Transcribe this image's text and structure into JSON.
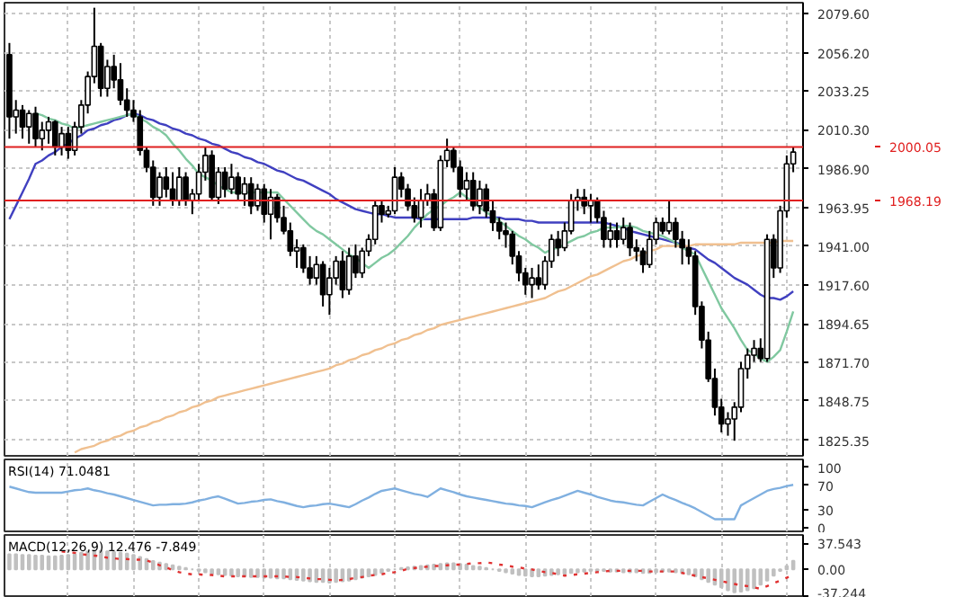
{
  "chart_data": [
    {
      "type": "candlestick",
      "categories": [
        null,
        null,
        null,
        null,
        null,
        null,
        null,
        null,
        null,
        null,
        null,
        null,
        null,
        null,
        null,
        null,
        null,
        null,
        null,
        null,
        null,
        null,
        null,
        null,
        null,
        null,
        null,
        null,
        null,
        null,
        null,
        null,
        null,
        null,
        null,
        null,
        null,
        null,
        null,
        null,
        null,
        null,
        null,
        null,
        null,
        null,
        null,
        null,
        null,
        null,
        null,
        null,
        null,
        null,
        null,
        null,
        null,
        null,
        null,
        null,
        null,
        null,
        null,
        null,
        null,
        null,
        null,
        null,
        null,
        null,
        null,
        null,
        null,
        null,
        null,
        null,
        null,
        null,
        null,
        null,
        null,
        null,
        null,
        null,
        null,
        null,
        null,
        null,
        null,
        null,
        null,
        null,
        null,
        null,
        null,
        null,
        null,
        null,
        null,
        null,
        null,
        null,
        null,
        null,
        null,
        null,
        null,
        null,
        null,
        null,
        null,
        null,
        null,
        null,
        null,
        null,
        null,
        null,
        null,
        null,
        null
      ],
      "ohlc": [
        [
          2055,
          2062,
          2005,
          2018
        ],
        [
          2018,
          2028,
          2008,
          2022
        ],
        [
          2022,
          2025,
          2005,
          2012
        ],
        [
          2012,
          2022,
          2002,
          2020
        ],
        [
          2020,
          2024,
          2000,
          2005
        ],
        [
          2005,
          2015,
          1998,
          2010
        ],
        [
          2010,
          2018,
          2002,
          2015
        ],
        [
          2015,
          2016,
          1995,
          2000
        ],
        [
          2000,
          2012,
          1995,
          2008
        ],
        [
          2008,
          2012,
          1993,
          1998
        ],
        [
          1998,
          2015,
          1995,
          2012
        ],
        [
          2012,
          2028,
          2008,
          2025
        ],
        [
          2025,
          2045,
          2020,
          2042
        ],
        [
          2042,
          2083,
          2038,
          2060
        ],
        [
          2060,
          2062,
          2030,
          2035
        ],
        [
          2035,
          2052,
          2030,
          2048
        ],
        [
          2048,
          2055,
          2035,
          2040
        ],
        [
          2040,
          2050,
          2025,
          2028
        ],
        [
          2028,
          2035,
          2018,
          2022
        ],
        [
          2022,
          2028,
          2015,
          2018
        ],
        [
          2018,
          2022,
          1995,
          1998
        ],
        [
          1998,
          2000,
          1985,
          1988
        ],
        [
          1988,
          1992,
          1965,
          1970
        ],
        [
          1970,
          1985,
          1965,
          1982
        ],
        [
          1982,
          1988,
          1970,
          1975
        ],
        [
          1975,
          1985,
          1965,
          1968
        ],
        [
          1968,
          1988,
          1965,
          1982
        ],
        [
          1982,
          1985,
          1965,
          1968
        ],
        [
          1968,
          1975,
          1960,
          1972
        ],
        [
          1972,
          1990,
          1968,
          1985
        ],
        [
          1985,
          2000,
          1980,
          1995
        ],
        [
          1995,
          1998,
          1968,
          1970
        ],
        [
          1970,
          1988,
          1966,
          1985
        ],
        [
          1985,
          1988,
          1970,
          1975
        ],
        [
          1975,
          1990,
          1972,
          1982
        ],
        [
          1982,
          1985,
          1968,
          1972
        ],
        [
          1972,
          1982,
          1965,
          1978
        ],
        [
          1978,
          1982,
          1960,
          1965
        ],
        [
          1965,
          1978,
          1962,
          1975
        ],
        [
          1975,
          1978,
          1955,
          1960
        ],
        [
          1960,
          1975,
          1945,
          1970
        ],
        [
          1970,
          1972,
          1955,
          1958
        ],
        [
          1958,
          1965,
          1948,
          1950
        ],
        [
          1950,
          1955,
          1935,
          1938
        ],
        [
          1938,
          1945,
          1928,
          1940
        ],
        [
          1940,
          1942,
          1925,
          1928
        ],
        [
          1928,
          1935,
          1918,
          1922
        ],
        [
          1922,
          1935,
          1918,
          1930
        ],
        [
          1930,
          1932,
          1905,
          1912
        ],
        [
          1912,
          1928,
          1900,
          1922
        ],
        [
          1922,
          1935,
          1918,
          1932
        ],
        [
          1932,
          1938,
          1910,
          1915
        ],
        [
          1915,
          1940,
          1912,
          1935
        ],
        [
          1935,
          1942,
          1922,
          1925
        ],
        [
          1925,
          1940,
          1922,
          1938
        ],
        [
          1938,
          1948,
          1935,
          1945
        ],
        [
          1945,
          1968,
          1942,
          1965
        ],
        [
          1965,
          1968,
          1955,
          1960
        ],
        [
          1960,
          1965,
          1958,
          1962
        ],
        [
          1962,
          1988,
          1960,
          1982
        ],
        [
          1982,
          1985,
          1970,
          1975
        ],
        [
          1975,
          1978,
          1962,
          1965
        ],
        [
          1965,
          1970,
          1955,
          1958
        ],
        [
          1958,
          1975,
          1952,
          1968
        ],
        [
          1968,
          1978,
          1965,
          1972
        ],
        [
          1972,
          1975,
          1950,
          1952
        ],
        [
          1952,
          1995,
          1950,
          1992
        ],
        [
          1992,
          2005,
          1988,
          1998
        ],
        [
          1998,
          2000,
          1985,
          1988
        ],
        [
          1988,
          1992,
          1970,
          1975
        ],
        [
          1975,
          1985,
          1968,
          1980
        ],
        [
          1980,
          1985,
          1962,
          1965
        ],
        [
          1965,
          1980,
          1960,
          1975
        ],
        [
          1975,
          1978,
          1958,
          1962
        ],
        [
          1962,
          1968,
          1950,
          1955
        ],
        [
          1955,
          1958,
          1945,
          1950
        ],
        [
          1950,
          1955,
          1940,
          1948
        ],
        [
          1948,
          1950,
          1930,
          1935
        ],
        [
          1935,
          1938,
          1920,
          1925
        ],
        [
          1925,
          1928,
          1912,
          1918
        ],
        [
          1918,
          1928,
          1910,
          1922
        ],
        [
          1922,
          1930,
          1915,
          1918
        ],
        [
          1918,
          1935,
          1915,
          1932
        ],
        [
          1932,
          1948,
          1928,
          1945
        ],
        [
          1945,
          1950,
          1935,
          1940
        ],
        [
          1940,
          1955,
          1938,
          1950
        ],
        [
          1950,
          1972,
          1948,
          1968
        ],
        [
          1968,
          1975,
          1962,
          1970
        ],
        [
          1970,
          1975,
          1960,
          1965
        ],
        [
          1965,
          1972,
          1955,
          1968
        ],
        [
          1968,
          1970,
          1955,
          1958
        ],
        [
          1958,
          1962,
          1940,
          1945
        ],
        [
          1945,
          1955,
          1940,
          1950
        ],
        [
          1950,
          1955,
          1940,
          1945
        ],
        [
          1945,
          1958,
          1942,
          1952
        ],
        [
          1952,
          1955,
          1935,
          1940
        ],
        [
          1940,
          1945,
          1932,
          1938
        ],
        [
          1938,
          1940,
          1925,
          1930
        ],
        [
          1930,
          1950,
          1928,
          1945
        ],
        [
          1945,
          1958,
          1942,
          1955
        ],
        [
          1955,
          1958,
          1948,
          1950
        ],
        [
          1950,
          1968,
          1948,
          1955
        ],
        [
          1955,
          1958,
          1940,
          1945
        ],
        [
          1945,
          1950,
          1930,
          1940
        ],
        [
          1940,
          1945,
          1930,
          1935
        ],
        [
          1935,
          1938,
          1900,
          1905
        ],
        [
          1905,
          1908,
          1880,
          1885
        ],
        [
          1885,
          1890,
          1860,
          1862
        ],
        [
          1862,
          1868,
          1840,
          1845
        ],
        [
          1845,
          1850,
          1830,
          1835
        ],
        [
          1835,
          1842,
          1828,
          1838
        ],
        [
          1838,
          1848,
          1825,
          1845
        ],
        [
          1845,
          1872,
          1842,
          1868
        ],
        [
          1868,
          1880,
          1862,
          1876
        ],
        [
          1876,
          1885,
          1872,
          1880
        ],
        [
          1880,
          1886,
          1872,
          1874
        ],
        [
          1874,
          1948,
          1872,
          1945
        ],
        [
          1945,
          1948,
          1922,
          1928
        ],
        [
          1928,
          1965,
          1925,
          1962
        ],
        [
          1962,
          1995,
          1958,
          1990
        ],
        [
          1990,
          2000,
          1985,
          1997
        ]
      ],
      "series": [
        {
          "type": "line",
          "color": "#4040c0",
          "values": [
            1957,
            1965,
            1973,
            1981,
            1990,
            1992,
            1995,
            1997,
            2000,
            2002,
            2005,
            2007,
            2010,
            2011,
            2013,
            2014,
            2016,
            2017,
            2019,
            2020,
            2019,
            2017,
            2016,
            2014,
            2013,
            2011,
            2010,
            2008,
            2007,
            2005,
            2004,
            2002,
            2001,
            1999,
            1997,
            1996,
            1994,
            1993,
            1991,
            1990,
            1988,
            1986,
            1985,
            1983,
            1981,
            1980,
            1978,
            1976,
            1974,
            1972,
            1969,
            1967,
            1965,
            1963,
            1962,
            1961,
            1960,
            1960,
            1959,
            1958,
            1958,
            1958,
            1958,
            1957,
            1957,
            1957,
            1957,
            1957,
            1957,
            1957,
            1957,
            1958,
            1958,
            1958,
            1958,
            1958,
            1957,
            1957,
            1957,
            1956,
            1956,
            1955,
            1955,
            1955,
            1955,
            1955,
            1955,
            1955,
            1955,
            1955,
            1955,
            1955,
            1954,
            1953,
            1952,
            1950,
            1949,
            1948,
            1947,
            1946,
            1945,
            1944,
            1943,
            1942,
            1940,
            1939,
            1936,
            1933,
            1931,
            1928,
            1925,
            1922,
            1920,
            1918,
            1915,
            1912,
            1910,
            1910,
            1909,
            1911,
            1914
          ]
        },
        {
          "type": "line",
          "color": "#80c8a0",
          "values": [
            null,
            null,
            null,
            null,
            2020,
            2019,
            2017,
            2016,
            2014,
            2013,
            2011,
            2012,
            2013,
            2014,
            2015,
            2016,
            2017,
            2018,
            2019,
            2020,
            2017,
            2015,
            2012,
            2010,
            2007,
            2002,
            1998,
            1993,
            1989,
            1984,
            1982,
            1980,
            1977,
            1975,
            1973,
            1973,
            1973,
            1973,
            1973,
            1973,
            1973,
            1973,
            1969,
            1965,
            1961,
            1957,
            1953,
            1950,
            1948,
            1945,
            1942,
            1939,
            1936,
            1934,
            1931,
            1928,
            1931,
            1934,
            1936,
            1939,
            1943,
            1947,
            1952,
            1956,
            1960,
            1963,
            1965,
            1968,
            1970,
            1973,
            1970,
            1967,
            1964,
            1961,
            1959,
            1956,
            1953,
            1950,
            1947,
            1945,
            1942,
            1940,
            1937,
            1939,
            1940,
            1942,
            1944,
            1946,
            1947,
            1949,
            1950,
            1952,
            1952,
            1952,
            1953,
            1953,
            1952,
            1950,
            1949,
            1948,
            1947,
            1945,
            1943,
            1940,
            1938,
            1936,
            1928,
            1920,
            1912,
            1904,
            1898,
            1892,
            1885,
            1879,
            1877,
            1874,
            1872,
            1875,
            1879,
            1890,
            1902
          ]
        },
        {
          "type": "line",
          "color": "#f0c090",
          "values": [
            null,
            null,
            null,
            null,
            null,
            null,
            null,
            null,
            null,
            null,
            1818,
            1820,
            1821,
            1822,
            1824,
            1825,
            1827,
            1828,
            1830,
            1831,
            1833,
            1834,
            1836,
            1837,
            1839,
            1840,
            1842,
            1843,
            1845,
            1846,
            1848,
            1849,
            1851,
            1852,
            1853,
            1854,
            1855,
            1856,
            1857,
            1858,
            1859,
            1860,
            1861,
            1862,
            1863,
            1864,
            1865,
            1866,
            1867,
            1868,
            1870,
            1871,
            1873,
            1874,
            1876,
            1877,
            1879,
            1880,
            1882,
            1883,
            1885,
            1886,
            1888,
            1889,
            1891,
            1892,
            1894,
            1895,
            1896,
            1897,
            1898,
            1899,
            1900,
            1901,
            1902,
            1903,
            1904,
            1905,
            1906,
            1907,
            1908,
            1909,
            1910,
            1912,
            1914,
            1915,
            1917,
            1919,
            1921,
            1923,
            1924,
            1926,
            1928,
            1930,
            1932,
            1933,
            1935,
            1936,
            1938,
            1939,
            1941,
            1941,
            1941,
            1941,
            1941,
            1942,
            1942,
            1942,
            1942,
            1942,
            1942,
            1942,
            1943,
            1943,
            1943,
            1943,
            1943,
            1943,
            1944,
            1944,
            1944
          ]
        }
      ],
      "ref_lines": [
        {
          "axis": "y",
          "value": 2000.05,
          "label": "2000.05",
          "color": "#e02020"
        },
        {
          "axis": "y",
          "value": 1968.19,
          "label": "1968.19",
          "color": "#e02020"
        }
      ],
      "ylim": [
        1816,
        2086
      ],
      "yticks": [
        {
          "value": 2079.6,
          "label": "2079.60"
        },
        {
          "value": 2056.2,
          "label": "2056.20"
        },
        {
          "value": 2033.25,
          "label": "2033.25"
        },
        {
          "value": 2010.3,
          "label": "2010.30"
        },
        {
          "value": 1986.9,
          "label": "1986.90"
        },
        {
          "value": 1963.95,
          "label": "1963.95"
        },
        {
          "value": 1941,
          "label": "1941.00"
        },
        {
          "value": 1917.6,
          "label": "1917.60"
        },
        {
          "value": 1894.65,
          "label": "1894.65"
        },
        {
          "value": 1871.7,
          "label": "1871.70"
        },
        {
          "value": 1848.75,
          "label": "1848.75"
        },
        {
          "value": 1825.35,
          "label": "1825.35"
        }
      ],
      "grid": true
    },
    {
      "type": "line",
      "title": "RSI(14) 71.0481",
      "categories": [
        null,
        null,
        null,
        null,
        null,
        null,
        null,
        null,
        null,
        null,
        null,
        null,
        null,
        null,
        null,
        null,
        null,
        null,
        null,
        null,
        null,
        null,
        null,
        null,
        null,
        null,
        null,
        null,
        null,
        null,
        null,
        null,
        null,
        null,
        null,
        null,
        null,
        null,
        null,
        null,
        null,
        null,
        null,
        null,
        null,
        null,
        null,
        null,
        null,
        null,
        null,
        null,
        null,
        null,
        null,
        null,
        null,
        null,
        null,
        null,
        null,
        null,
        null,
        null,
        null,
        null,
        null,
        null,
        null,
        null,
        null,
        null,
        null,
        null,
        null,
        null,
        null,
        null,
        null,
        null,
        null,
        null,
        null,
        null,
        null,
        null,
        null,
        null,
        null,
        null,
        null,
        null,
        null,
        null,
        null,
        null,
        null,
        null,
        null,
        null,
        null,
        null,
        null,
        null,
        null,
        null,
        null,
        null,
        null,
        null,
        null,
        null,
        null,
        null,
        null,
        null,
        null,
        null,
        null,
        null,
        null
      ],
      "series": [
        {
          "color": "#80b0e0",
          "values": [
            68,
            65,
            62,
            59,
            58,
            58,
            58,
            58,
            58,
            60,
            62,
            63,
            65,
            62,
            60,
            57,
            55,
            52,
            49,
            46,
            43,
            40,
            37,
            38,
            38,
            39,
            39,
            40,
            42,
            45,
            47,
            50,
            52,
            48,
            44,
            40,
            41,
            43,
            44,
            46,
            47,
            44,
            42,
            39,
            36,
            34,
            36,
            37,
            39,
            40,
            38,
            36,
            34,
            39,
            45,
            50,
            56,
            61,
            63,
            65,
            62,
            59,
            56,
            54,
            51,
            58,
            65,
            62,
            59,
            55,
            52,
            50,
            48,
            46,
            44,
            42,
            40,
            39,
            37,
            36,
            34,
            38,
            42,
            46,
            49,
            53,
            57,
            61,
            58,
            55,
            51,
            48,
            45,
            43,
            42,
            40,
            38,
            37,
            43,
            49,
            55,
            50,
            46,
            41,
            37,
            32,
            26,
            20,
            14,
            14,
            14,
            14,
            37,
            43,
            49,
            55,
            61,
            64,
            66,
            69,
            71.05
          ]
        }
      ],
      "ylim": [
        -6,
        113
      ],
      "yticks": [
        0,
        30,
        70,
        100
      ],
      "grid": "x"
    },
    {
      "type": "bar",
      "title": "MACD(12,26,9) 12.476 -7.849",
      "categories": [
        null,
        null,
        null,
        null,
        null,
        null,
        null,
        null,
        null,
        null,
        null,
        null,
        null,
        null,
        null,
        null,
        null,
        null,
        null,
        null,
        null,
        null,
        null,
        null,
        null,
        null,
        null,
        null,
        null,
        null,
        null,
        null,
        null,
        null,
        null,
        null,
        null,
        null,
        null,
        null,
        null,
        null,
        null,
        null,
        null,
        null,
        null,
        null,
        null,
        null,
        null,
        null,
        null,
        null,
        null,
        null,
        null,
        null,
        null,
        null,
        null,
        null,
        null,
        null,
        null,
        null,
        null,
        null,
        null,
        null,
        null,
        null,
        null,
        null,
        null,
        null,
        null,
        null,
        null,
        null,
        null,
        null,
        null,
        null,
        null,
        null,
        null,
        null,
        null,
        null,
        null,
        null,
        null,
        null,
        null,
        null,
        null,
        null,
        null,
        null,
        null,
        null,
        null,
        null,
        null,
        null,
        null,
        null,
        null,
        null,
        null,
        null,
        null,
        null,
        null,
        null,
        null,
        null,
        null,
        null,
        null
      ],
      "series": [
        {
          "type": "bar",
          "color": "#c0c0c0",
          "values": [
            22,
            22,
            21,
            21,
            20,
            20,
            19,
            19,
            20,
            21,
            22,
            24,
            26,
            28,
            27,
            26,
            25,
            24,
            23,
            21,
            18,
            15,
            12,
            10,
            8,
            6,
            4,
            2,
            0,
            -2,
            -4,
            -6,
            -7,
            -8,
            -9,
            -10,
            -10,
            -11,
            -11,
            -12,
            -12,
            -13,
            -13,
            -14,
            -15,
            -16,
            -17,
            -18,
            -18,
            -19,
            -18,
            -17,
            -16,
            -14,
            -12,
            -10,
            -8,
            -5,
            -2,
            0,
            2,
            3,
            4,
            5,
            6,
            7,
            8,
            9,
            9,
            8,
            7,
            5,
            4,
            2,
            0,
            -2,
            -4,
            -6,
            -8,
            -9,
            -10,
            -10,
            -9,
            -8,
            -7,
            -6,
            -5,
            -4,
            -3,
            -2,
            -2,
            -2,
            -3,
            -3,
            -4,
            -4,
            -4,
            -5,
            -5,
            -4,
            -3,
            -3,
            -4,
            -5,
            -7,
            -10,
            -14,
            -18,
            -22,
            -26,
            -30,
            -33,
            -32,
            -30,
            -27,
            -22,
            -16,
            -9,
            -2,
            5,
            12.476
          ]
        },
        {
          "type": "line",
          "color": "#e03030",
          "line_style": "dotted",
          "values": [
            null,
            null,
            null,
            null,
            null,
            null,
            null,
            null,
            26,
            25,
            24,
            22,
            21,
            20,
            19,
            17,
            16,
            15,
            15,
            14,
            14,
            13,
            10,
            6,
            3,
            -1,
            -4,
            -6,
            -7,
            -7,
            -8,
            -8,
            -9,
            -10,
            -10,
            -10,
            -10,
            -10,
            -10,
            -10,
            -10,
            -10,
            -10,
            -11,
            -11,
            -12,
            -13,
            -14,
            -14,
            -15,
            -16,
            -15,
            -14,
            -12,
            -11,
            -9,
            -8,
            -7,
            -5,
            -4,
            -2,
            1,
            2,
            3,
            4,
            5,
            5,
            6,
            7,
            7,
            8,
            9,
            9,
            10,
            9,
            7,
            6,
            4,
            3,
            1,
            0,
            -2,
            -4,
            -5,
            -7,
            -9,
            -8,
            -7,
            -6,
            -5,
            -4,
            -3,
            -2,
            -2,
            -2,
            -2,
            -2,
            -2,
            -3,
            -3,
            -3,
            -3,
            -3,
            -5,
            -7,
            -9,
            -11,
            -13,
            -15,
            -17,
            -19,
            -21,
            -23,
            -24,
            -26,
            -28,
            -24,
            -20,
            -16,
            -12,
            -7.849
          ]
        }
      ],
      "ylim": [
        -38.5,
        49.8
      ],
      "yticks": [
        {
          "value": 37.543,
          "label": "37.543"
        },
        {
          "value": 0,
          "label": "0.00"
        },
        {
          "value": -37.244,
          "label": "-37.244"
        }
      ],
      "grid": "x"
    }
  ]
}
